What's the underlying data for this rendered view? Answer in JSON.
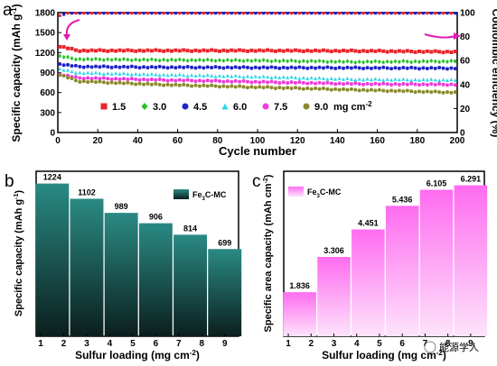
{
  "panel_letters": [
    "a",
    "b",
    "c"
  ],
  "watermark": "能源学人",
  "colors": {
    "bar_b_top": "#2a8a84",
    "bar_b_bottom": "#0b1f1d",
    "bar_c_top": "#ff6cf0",
    "bar_c_bottom": "#fde3fb",
    "s15": "#e8262d",
    "s30": "#21c421",
    "s45": "#1f24c8",
    "s60": "#2ad7e8",
    "s75": "#ee3bd8",
    "s90": "#8a8a2c"
  },
  "chart_data": [
    {
      "type": "scatter",
      "xlabel": "Cycle number",
      "ylabel": "Specific capacity (mAh g-1)",
      "ylabel_parts": [
        "Specific capacity (mAh g",
        "-1",
        ")"
      ],
      "y2label": "Coulombic efficiency (%)",
      "xlim": [
        0,
        200
      ],
      "ylim": [
        0,
        1800
      ],
      "y2lim": [
        0,
        100
      ],
      "x_ticks": [
        "0",
        "20",
        "40",
        "60",
        "80",
        "100",
        "120",
        "140",
        "160",
        "180",
        "200"
      ],
      "y_ticks": [
        "0",
        "300",
        "600",
        "900",
        "1200",
        "1500",
        "1800"
      ],
      "y2_ticks": [
        "0",
        "20",
        "40",
        "60",
        "80",
        "100"
      ],
      "legend_unit": "mg cm-2",
      "legend_unit_parts": [
        "mg cm",
        "-2"
      ],
      "legend_placement": "bottom",
      "series": [
        {
          "name": "1.5",
          "color_key": "s15",
          "marker": "square",
          "start": 1224,
          "x": [
            0,
            10,
            50,
            100,
            150,
            200
          ],
          "y": [
            1300,
            1230,
            1230,
            1230,
            1225,
            1210
          ]
        },
        {
          "name": "3.0",
          "color_key": "s30",
          "marker": "diamond",
          "start": 1102,
          "x": [
            0,
            10,
            50,
            100,
            150,
            200
          ],
          "y": [
            1150,
            1100,
            1090,
            1080,
            1060,
            1070
          ]
        },
        {
          "name": "4.5",
          "color_key": "s45",
          "marker": "circle",
          "start": 989,
          "x": [
            0,
            10,
            50,
            100,
            150,
            200
          ],
          "y": [
            1030,
            990,
            980,
            975,
            970,
            965
          ]
        },
        {
          "name": "6.0",
          "color_key": "s60",
          "marker": "triangle",
          "start": 906,
          "x": [
            0,
            10,
            50,
            100,
            150,
            200
          ],
          "y": [
            960,
            900,
            870,
            840,
            800,
            790
          ]
        },
        {
          "name": "7.5",
          "color_key": "s75",
          "marker": "circle",
          "start": 814,
          "x": [
            0,
            10,
            50,
            100,
            150,
            200
          ],
          "y": [
            880,
            820,
            790,
            760,
            730,
            720
          ]
        },
        {
          "name": "9.0",
          "color_key": "s90",
          "marker": "circle",
          "start": 699,
          "x": [
            0,
            10,
            50,
            100,
            150,
            200
          ],
          "y": [
            880,
            770,
            720,
            680,
            640,
            600
          ]
        }
      ],
      "efficiency": {
        "x": [
          0,
          5,
          200
        ],
        "y": [
          97,
          99.5,
          99.5
        ]
      }
    },
    {
      "type": "bar",
      "xlabel": "Sulfur loading (mg cm-2)",
      "xlabel_parts": [
        "Sulfur loading (mg cm",
        "-2",
        ")"
      ],
      "ylabel": "Specific capacity (mAh g-1)",
      "ylabel_parts": [
        "Specific capacity (mAh g",
        "-1",
        ")"
      ],
      "x_ticks": [
        "1",
        "2",
        "3",
        "4",
        "5",
        "6",
        "7",
        "8",
        "9"
      ],
      "legend_parts": [
        "Fe",
        "3",
        "C-MC"
      ],
      "categories": [
        "1.5",
        "3.0",
        "4.5",
        "6.0",
        "7.5",
        "9.0"
      ],
      "bar_x": [
        1.5,
        3.0,
        4.5,
        6.0,
        7.5,
        9.0
      ],
      "values": [
        1224,
        1102,
        989,
        906,
        814,
        699
      ],
      "value_labels": [
        "1224",
        "1102",
        "989",
        "906",
        "814",
        "699"
      ],
      "ylim": [
        0,
        1250
      ]
    },
    {
      "type": "bar",
      "xlabel": "Sulfur loading (mg cm-2)",
      "xlabel_parts": [
        "Sulfur loading (mg cm",
        "-2",
        ")"
      ],
      "ylabel": "Specific area capacity (mAh cm-2)",
      "ylabel_parts": [
        "Specific area capacity (mAh cm",
        "-2",
        ")"
      ],
      "x_ticks": [
        "1",
        "2",
        "3",
        "4",
        "5",
        "6",
        "7",
        "8",
        "9"
      ],
      "legend_parts": [
        "Fe",
        "3",
        "C-MC"
      ],
      "categories": [
        "1.5",
        "3.0",
        "4.5",
        "6.0",
        "7.5",
        "9.0"
      ],
      "bar_x": [
        1.5,
        3.0,
        4.5,
        6.0,
        7.5,
        9.0
      ],
      "values": [
        1.836,
        3.306,
        4.451,
        5.436,
        6.105,
        6.291
      ],
      "value_labels": [
        "1.836",
        "3.306",
        "4.451",
        "5.436",
        "6.105",
        "6.291"
      ],
      "ylim": [
        0,
        6.5
      ]
    }
  ]
}
